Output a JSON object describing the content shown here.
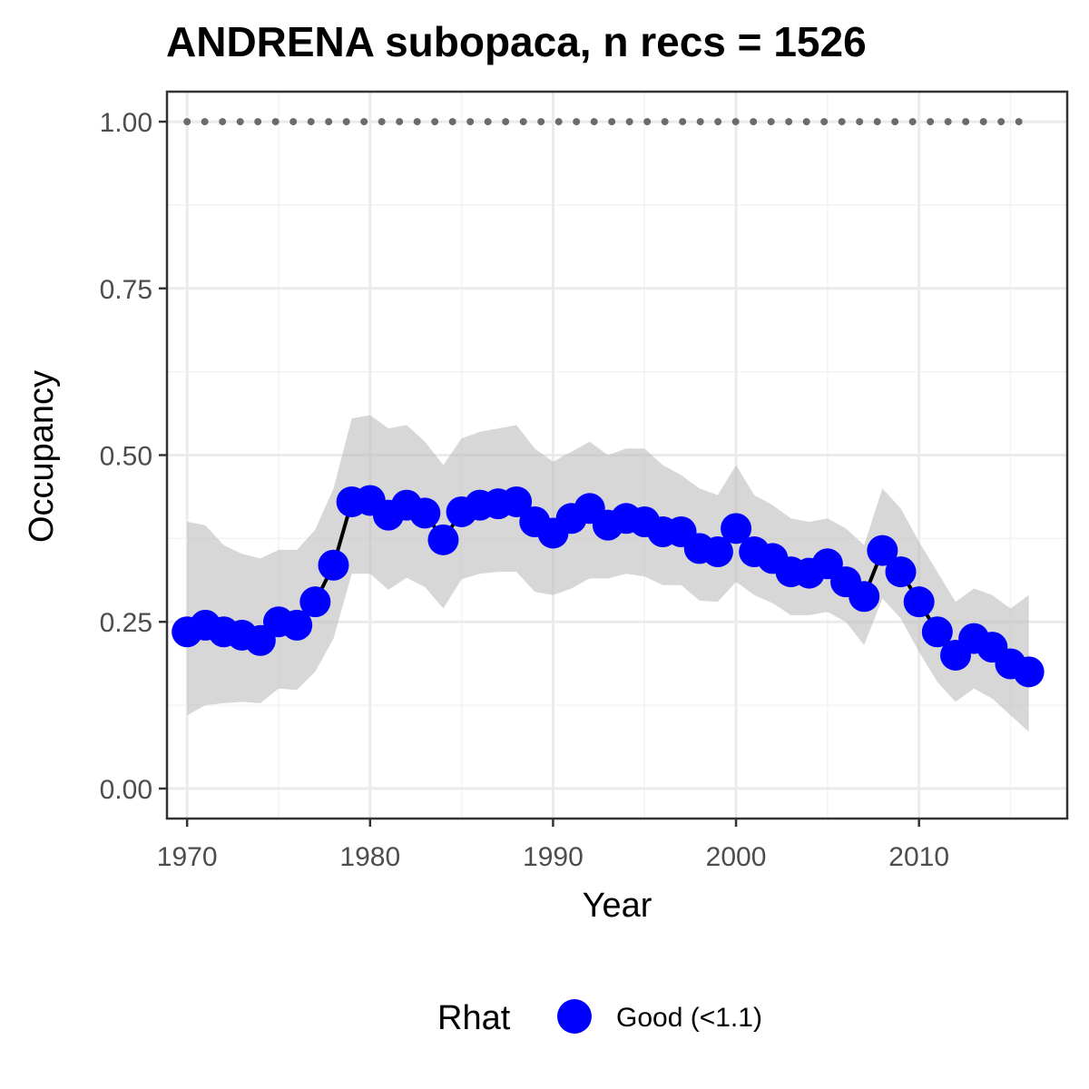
{
  "chart_data": {
    "type": "line",
    "title": "ANDRENA subopaca, n recs = 1526",
    "xlabel": "Year",
    "ylabel": "Occupancy",
    "xlim": [
      1968.9,
      2018.1
    ],
    "ylim": [
      -0.045,
      1.045
    ],
    "x_ticks": [
      1970,
      1980,
      1990,
      2000,
      2010
    ],
    "x_tick_labels": [
      "1970",
      "1980",
      "1990",
      "2000",
      "2010"
    ],
    "y_ticks": [
      0,
      0.25,
      0.5,
      0.75,
      1.0
    ],
    "y_tick_labels": [
      "0.00",
      "0.25",
      "0.50",
      "0.75",
      "1.00"
    ],
    "grid": true,
    "legend": {
      "position": "bottom",
      "title": "Rhat",
      "entries": [
        {
          "label": "Good (<1.1)",
          "color": "#0000ff"
        }
      ]
    },
    "colors": {
      "points": "#0000ff",
      "line": "#000000",
      "ribbon": "#bfbfbf",
      "reference_dots": "#6b6b6b",
      "grid_major": "#ebebeb",
      "grid_minor": "#f3f3f3",
      "panel_border": "#333333"
    },
    "reference_line": {
      "y": 1.0,
      "x_from": 1970,
      "x_to": 2016
    },
    "x": [
      1970,
      1971,
      1972,
      1973,
      1974,
      1975,
      1976,
      1977,
      1978,
      1979,
      1980,
      1981,
      1982,
      1983,
      1984,
      1985,
      1986,
      1987,
      1988,
      1989,
      1990,
      1991,
      1992,
      1993,
      1994,
      1995,
      1996,
      1997,
      1998,
      1999,
      2000,
      2001,
      2002,
      2003,
      2004,
      2005,
      2006,
      2007,
      2008,
      2009,
      2010,
      2011,
      2012,
      2013,
      2014,
      2015,
      2016
    ],
    "series": [
      {
        "name": "Good (<1.1)",
        "values": [
          0.235,
          0.245,
          0.235,
          0.23,
          0.222,
          0.25,
          0.245,
          0.28,
          0.335,
          0.43,
          0.432,
          0.41,
          0.425,
          0.413,
          0.373,
          0.415,
          0.425,
          0.427,
          0.43,
          0.4,
          0.383,
          0.405,
          0.42,
          0.395,
          0.405,
          0.4,
          0.385,
          0.385,
          0.36,
          0.355,
          0.39,
          0.355,
          0.345,
          0.325,
          0.323,
          0.337,
          0.31,
          0.288,
          0.357,
          0.325,
          0.28,
          0.235,
          0.2,
          0.225,
          0.212,
          0.187,
          0.175
        ],
        "lower": [
          0.11,
          0.125,
          0.128,
          0.13,
          0.128,
          0.15,
          0.148,
          0.175,
          0.225,
          0.322,
          0.322,
          0.298,
          0.316,
          0.302,
          0.27,
          0.314,
          0.322,
          0.325,
          0.325,
          0.295,
          0.29,
          0.3,
          0.315,
          0.315,
          0.322,
          0.318,
          0.305,
          0.305,
          0.282,
          0.28,
          0.31,
          0.29,
          0.278,
          0.26,
          0.26,
          0.265,
          0.25,
          0.215,
          0.285,
          0.255,
          0.205,
          0.16,
          0.13,
          0.15,
          0.135,
          0.11,
          0.085
        ],
        "upper": [
          0.4,
          0.395,
          0.365,
          0.352,
          0.345,
          0.358,
          0.358,
          0.388,
          0.45,
          0.555,
          0.56,
          0.54,
          0.545,
          0.52,
          0.485,
          0.525,
          0.535,
          0.54,
          0.545,
          0.51,
          0.49,
          0.505,
          0.52,
          0.5,
          0.51,
          0.51,
          0.485,
          0.47,
          0.45,
          0.44,
          0.485,
          0.44,
          0.425,
          0.405,
          0.4,
          0.405,
          0.39,
          0.365,
          0.45,
          0.42,
          0.37,
          0.325,
          0.28,
          0.3,
          0.29,
          0.27,
          0.29
        ]
      }
    ]
  }
}
